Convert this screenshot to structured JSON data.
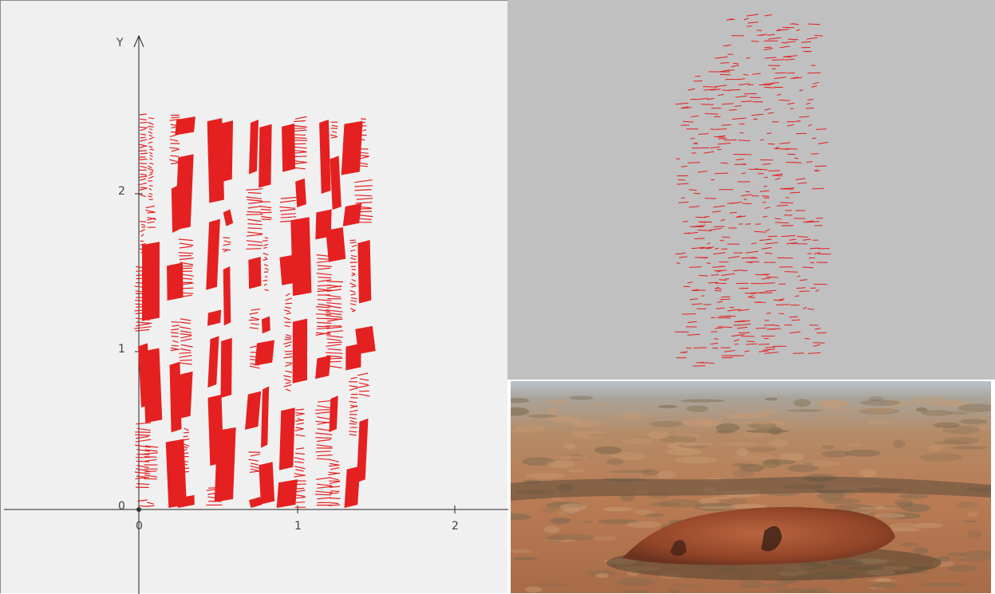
{
  "plot": {
    "y_axis_label": "Y",
    "x_ticks": [
      "0",
      "1",
      "2"
    ],
    "y_ticks": [
      "0",
      "1",
      "2"
    ],
    "stroke_color": "#e52020",
    "background": "#f0f0f0"
  },
  "viewer": {
    "background": "#c0c0c0",
    "point_color": "#e52020"
  },
  "photo": {
    "subject": "aerial-rock-formation-photo",
    "sky_color": "#b7c2cd",
    "plain_color": "#b88962",
    "rock_color": "#9a4a2c"
  }
}
